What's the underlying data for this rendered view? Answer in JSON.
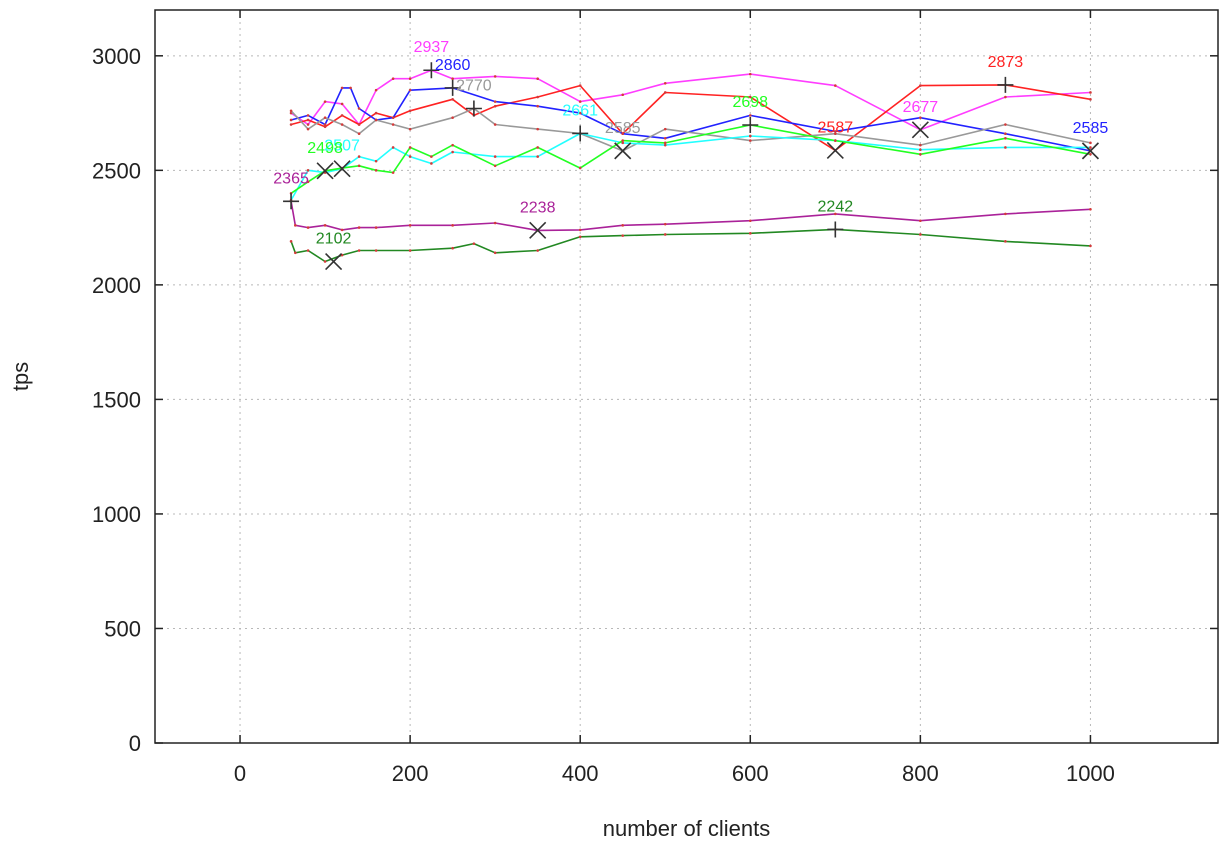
{
  "chart_data": {
    "type": "line",
    "xlabel": "number of clients",
    "ylabel": "tps",
    "xlim": [
      -100,
      1150
    ],
    "ylim": [
      0,
      3200
    ],
    "xticks": [
      0,
      200,
      400,
      600,
      800,
      1000
    ],
    "yticks": [
      0,
      500,
      1000,
      1500,
      2000,
      2500,
      3000
    ],
    "grid": true,
    "legend": "none",
    "series": [
      {
        "color": "#ff3dff",
        "x": [
          60,
          80,
          100,
          120,
          140,
          160,
          180,
          200,
          225,
          250,
          300,
          350,
          400,
          450,
          500,
          600,
          700,
          800,
          900,
          1000
        ],
        "y": [
          2750,
          2700,
          2800,
          2790,
          2700,
          2850,
          2900,
          2900,
          2937,
          2900,
          2910,
          2900,
          2800,
          2830,
          2880,
          2920,
          2870,
          2677,
          2820,
          2840
        ]
      },
      {
        "color": "#ff2222",
        "x": [
          60,
          80,
          100,
          120,
          140,
          160,
          180,
          200,
          250,
          275,
          300,
          350,
          400,
          450,
          500,
          600,
          700,
          800,
          900,
          1000
        ],
        "y": [
          2700,
          2720,
          2690,
          2740,
          2700,
          2750,
          2730,
          2760,
          2810,
          2740,
          2780,
          2820,
          2870,
          2660,
          2840,
          2820,
          2587,
          2870,
          2873,
          2810
        ]
      },
      {
        "color": "#2222ff",
        "x": [
          60,
          80,
          100,
          120,
          130,
          140,
          160,
          180,
          200,
          250,
          300,
          350,
          400,
          450,
          500,
          600,
          700,
          800,
          900,
          1000
        ],
        "y": [
          2720,
          2740,
          2700,
          2860,
          2860,
          2770,
          2720,
          2730,
          2850,
          2860,
          2800,
          2780,
          2750,
          2660,
          2640,
          2740,
          2670,
          2730,
          2660,
          2585
        ]
      },
      {
        "color": "#999999",
        "x": [
          60,
          80,
          100,
          120,
          140,
          160,
          180,
          200,
          250,
          275,
          300,
          350,
          400,
          450,
          500,
          600,
          700,
          800,
          900,
          1000
        ],
        "y": [
          2760,
          2680,
          2730,
          2700,
          2660,
          2720,
          2700,
          2680,
          2730,
          2770,
          2700,
          2680,
          2661,
          2585,
          2680,
          2630,
          2660,
          2610,
          2700,
          2620
        ]
      },
      {
        "color": "#22ffff",
        "x": [
          60,
          80,
          100,
          120,
          140,
          160,
          180,
          200,
          225,
          250,
          300,
          350,
          400,
          450,
          500,
          600,
          700,
          800,
          900,
          1000
        ],
        "y": [
          2370,
          2500,
          2490,
          2507,
          2560,
          2540,
          2600,
          2560,
          2530,
          2580,
          2560,
          2560,
          2661,
          2620,
          2610,
          2650,
          2630,
          2590,
          2600,
          2600
        ]
      },
      {
        "color": "#22ff22",
        "x": [
          60,
          80,
          100,
          120,
          140,
          160,
          180,
          200,
          225,
          250,
          300,
          350,
          400,
          450,
          500,
          600,
          700,
          800,
          900,
          1000
        ],
        "y": [
          2400,
          2450,
          2498,
          2510,
          2520,
          2500,
          2490,
          2600,
          2560,
          2610,
          2520,
          2600,
          2510,
          2630,
          2620,
          2698,
          2630,
          2570,
          2640,
          2570
        ]
      },
      {
        "color": "#aa2299",
        "x": [
          60,
          65,
          80,
          100,
          120,
          140,
          160,
          200,
          250,
          300,
          350,
          400,
          450,
          500,
          600,
          700,
          800,
          900,
          1000
        ],
        "y": [
          2365,
          2260,
          2250,
          2260,
          2240,
          2250,
          2250,
          2260,
          2260,
          2270,
          2238,
          2240,
          2260,
          2265,
          2280,
          2310,
          2280,
          2310,
          2330
        ]
      },
      {
        "color": "#228822",
        "x": [
          60,
          65,
          80,
          100,
          120,
          140,
          160,
          200,
          250,
          275,
          300,
          350,
          400,
          450,
          500,
          600,
          700,
          800,
          900,
          1000
        ],
        "y": [
          2190,
          2140,
          2150,
          2102,
          2130,
          2150,
          2150,
          2150,
          2160,
          2180,
          2140,
          2150,
          2210,
          2215,
          2220,
          2225,
          2242,
          2220,
          2190,
          2170
        ]
      }
    ],
    "annotations": [
      {
        "text": "2937",
        "x": 225,
        "y": 2937,
        "color": "#ff3dff",
        "marker": "plus"
      },
      {
        "text": "2860",
        "x": 250,
        "y": 2860,
        "color": "#2222ff",
        "marker": "plus"
      },
      {
        "text": "2770",
        "x": 275,
        "y": 2770,
        "color": "#999999",
        "marker": "plus"
      },
      {
        "text": "2661",
        "x": 400,
        "y": 2661,
        "color": "#22ffff",
        "marker": "plus"
      },
      {
        "text": "2585",
        "x": 450,
        "y": 2585,
        "color": "#999999",
        "marker": "cross"
      },
      {
        "text": "2698",
        "x": 600,
        "y": 2698,
        "color": "#22ff22",
        "marker": "plus"
      },
      {
        "text": "2587",
        "x": 700,
        "y": 2587,
        "color": "#ff2222",
        "marker": "cross"
      },
      {
        "text": "2677",
        "x": 800,
        "y": 2677,
        "color": "#ff3dff",
        "marker": "cross"
      },
      {
        "text": "2873",
        "x": 900,
        "y": 2873,
        "color": "#ff2222",
        "marker": "plus"
      },
      {
        "text": "2585",
        "x": 1000,
        "y": 2585,
        "color": "#2222ff",
        "marker": "cross"
      },
      {
        "text": "2507",
        "x": 120,
        "y": 2507,
        "color": "#22ffff",
        "marker": "cross"
      },
      {
        "text": "2498",
        "x": 100,
        "y": 2498,
        "color": "#22ff22",
        "marker": "cross"
      },
      {
        "text": "2365",
        "x": 60,
        "y": 2365,
        "color": "#aa2299",
        "marker": "plus"
      },
      {
        "text": "2238",
        "x": 350,
        "y": 2238,
        "color": "#aa2299",
        "marker": "cross"
      },
      {
        "text": "2242",
        "x": 700,
        "y": 2242,
        "color": "#228822",
        "marker": "plus"
      },
      {
        "text": "2102",
        "x": 110,
        "y": 2102,
        "color": "#228822",
        "marker": "cross"
      }
    ]
  }
}
